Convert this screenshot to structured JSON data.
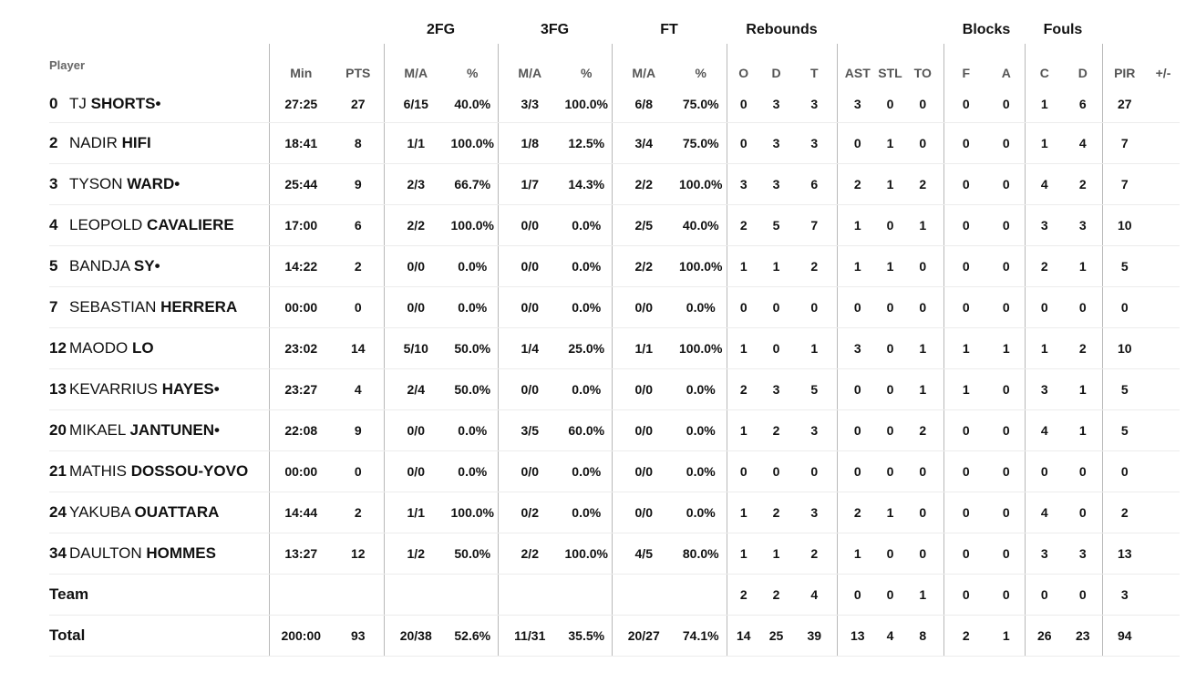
{
  "groups": {
    "fg2": "2FG",
    "fg3": "3FG",
    "ft": "FT",
    "rebounds": "Rebounds",
    "blocks": "Blocks",
    "fouls": "Fouls"
  },
  "columns": {
    "player": "Player",
    "min": "Min",
    "pts": "PTS",
    "fg2_ma": "M/A",
    "fg2_pct": "%",
    "fg3_ma": "M/A",
    "fg3_pct": "%",
    "ft_ma": "M/A",
    "ft_pct": "%",
    "reb_o": "O",
    "reb_d": "D",
    "reb_t": "T",
    "ast": "AST",
    "stl": "STL",
    "to": "TO",
    "blk_f": "F",
    "blk_a": "A",
    "foul_c": "C",
    "foul_d": "D",
    "pir": "PIR",
    "pm": "+/-"
  },
  "players": [
    {
      "num": "0",
      "first": "TJ",
      "last": "SHORTS",
      "starter": true,
      "min": "27:25",
      "pts": "27",
      "fg2_ma": "6/15",
      "fg2_pct": "40.0%",
      "fg3_ma": "3/3",
      "fg3_pct": "100.0%",
      "ft_ma": "6/8",
      "ft_pct": "75.0%",
      "reb_o": "0",
      "reb_d": "3",
      "reb_t": "3",
      "ast": "3",
      "stl": "0",
      "to": "0",
      "blk_f": "0",
      "blk_a": "0",
      "foul_c": "1",
      "foul_d": "6",
      "pir": "27",
      "pm": ""
    },
    {
      "num": "2",
      "first": "NADIR",
      "last": "HIFI",
      "starter": false,
      "min": "18:41",
      "pts": "8",
      "fg2_ma": "1/1",
      "fg2_pct": "100.0%",
      "fg3_ma": "1/8",
      "fg3_pct": "12.5%",
      "ft_ma": "3/4",
      "ft_pct": "75.0%",
      "reb_o": "0",
      "reb_d": "3",
      "reb_t": "3",
      "ast": "0",
      "stl": "1",
      "to": "0",
      "blk_f": "0",
      "blk_a": "0",
      "foul_c": "1",
      "foul_d": "4",
      "pir": "7",
      "pm": ""
    },
    {
      "num": "3",
      "first": "TYSON",
      "last": "WARD",
      "starter": true,
      "min": "25:44",
      "pts": "9",
      "fg2_ma": "2/3",
      "fg2_pct": "66.7%",
      "fg3_ma": "1/7",
      "fg3_pct": "14.3%",
      "ft_ma": "2/2",
      "ft_pct": "100.0%",
      "reb_o": "3",
      "reb_d": "3",
      "reb_t": "6",
      "ast": "2",
      "stl": "1",
      "to": "2",
      "blk_f": "0",
      "blk_a": "0",
      "foul_c": "4",
      "foul_d": "2",
      "pir": "7",
      "pm": ""
    },
    {
      "num": "4",
      "first": "LEOPOLD",
      "last": "CAVALIERE",
      "starter": false,
      "min": "17:00",
      "pts": "6",
      "fg2_ma": "2/2",
      "fg2_pct": "100.0%",
      "fg3_ma": "0/0",
      "fg3_pct": "0.0%",
      "ft_ma": "2/5",
      "ft_pct": "40.0%",
      "reb_o": "2",
      "reb_d": "5",
      "reb_t": "7",
      "ast": "1",
      "stl": "0",
      "to": "1",
      "blk_f": "0",
      "blk_a": "0",
      "foul_c": "3",
      "foul_d": "3",
      "pir": "10",
      "pm": ""
    },
    {
      "num": "5",
      "first": "BANDJA",
      "last": "SY",
      "starter": true,
      "min": "14:22",
      "pts": "2",
      "fg2_ma": "0/0",
      "fg2_pct": "0.0%",
      "fg3_ma": "0/0",
      "fg3_pct": "0.0%",
      "ft_ma": "2/2",
      "ft_pct": "100.0%",
      "reb_o": "1",
      "reb_d": "1",
      "reb_t": "2",
      "ast": "1",
      "stl": "1",
      "to": "0",
      "blk_f": "0",
      "blk_a": "0",
      "foul_c": "2",
      "foul_d": "1",
      "pir": "5",
      "pm": ""
    },
    {
      "num": "7",
      "first": "SEBASTIAN",
      "last": "HERRERA",
      "starter": false,
      "min": "00:00",
      "pts": "0",
      "fg2_ma": "0/0",
      "fg2_pct": "0.0%",
      "fg3_ma": "0/0",
      "fg3_pct": "0.0%",
      "ft_ma": "0/0",
      "ft_pct": "0.0%",
      "reb_o": "0",
      "reb_d": "0",
      "reb_t": "0",
      "ast": "0",
      "stl": "0",
      "to": "0",
      "blk_f": "0",
      "blk_a": "0",
      "foul_c": "0",
      "foul_d": "0",
      "pir": "0",
      "pm": ""
    },
    {
      "num": "12",
      "first": "MAODO",
      "last": "LO",
      "starter": false,
      "min": "23:02",
      "pts": "14",
      "fg2_ma": "5/10",
      "fg2_pct": "50.0%",
      "fg3_ma": "1/4",
      "fg3_pct": "25.0%",
      "ft_ma": "1/1",
      "ft_pct": "100.0%",
      "reb_o": "1",
      "reb_d": "0",
      "reb_t": "1",
      "ast": "3",
      "stl": "0",
      "to": "1",
      "blk_f": "1",
      "blk_a": "1",
      "foul_c": "1",
      "foul_d": "2",
      "pir": "10",
      "pm": ""
    },
    {
      "num": "13",
      "first": "KEVARRIUS",
      "last": "HAYES",
      "starter": true,
      "min": "23:27",
      "pts": "4",
      "fg2_ma": "2/4",
      "fg2_pct": "50.0%",
      "fg3_ma": "0/0",
      "fg3_pct": "0.0%",
      "ft_ma": "0/0",
      "ft_pct": "0.0%",
      "reb_o": "2",
      "reb_d": "3",
      "reb_t": "5",
      "ast": "0",
      "stl": "0",
      "to": "1",
      "blk_f": "1",
      "blk_a": "0",
      "foul_c": "3",
      "foul_d": "1",
      "pir": "5",
      "pm": ""
    },
    {
      "num": "20",
      "first": "MIKAEL",
      "last": "JANTUNEN",
      "starter": true,
      "min": "22:08",
      "pts": "9",
      "fg2_ma": "0/0",
      "fg2_pct": "0.0%",
      "fg3_ma": "3/5",
      "fg3_pct": "60.0%",
      "ft_ma": "0/0",
      "ft_pct": "0.0%",
      "reb_o": "1",
      "reb_d": "2",
      "reb_t": "3",
      "ast": "0",
      "stl": "0",
      "to": "2",
      "blk_f": "0",
      "blk_a": "0",
      "foul_c": "4",
      "foul_d": "1",
      "pir": "5",
      "pm": ""
    },
    {
      "num": "21",
      "first": "MATHIS",
      "last": "DOSSOU-YOVO",
      "starter": false,
      "min": "00:00",
      "pts": "0",
      "fg2_ma": "0/0",
      "fg2_pct": "0.0%",
      "fg3_ma": "0/0",
      "fg3_pct": "0.0%",
      "ft_ma": "0/0",
      "ft_pct": "0.0%",
      "reb_o": "0",
      "reb_d": "0",
      "reb_t": "0",
      "ast": "0",
      "stl": "0",
      "to": "0",
      "blk_f": "0",
      "blk_a": "0",
      "foul_c": "0",
      "foul_d": "0",
      "pir": "0",
      "pm": ""
    },
    {
      "num": "24",
      "first": "YAKUBA",
      "last": "OUATTARA",
      "starter": false,
      "min": "14:44",
      "pts": "2",
      "fg2_ma": "1/1",
      "fg2_pct": "100.0%",
      "fg3_ma": "0/2",
      "fg3_pct": "0.0%",
      "ft_ma": "0/0",
      "ft_pct": "0.0%",
      "reb_o": "1",
      "reb_d": "2",
      "reb_t": "3",
      "ast": "2",
      "stl": "1",
      "to": "0",
      "blk_f": "0",
      "blk_a": "0",
      "foul_c": "4",
      "foul_d": "0",
      "pir": "2",
      "pm": ""
    },
    {
      "num": "34",
      "first": "DAULTON",
      "last": "HOMMES",
      "starter": false,
      "min": "13:27",
      "pts": "12",
      "fg2_ma": "1/2",
      "fg2_pct": "50.0%",
      "fg3_ma": "2/2",
      "fg3_pct": "100.0%",
      "ft_ma": "4/5",
      "ft_pct": "80.0%",
      "reb_o": "1",
      "reb_d": "1",
      "reb_t": "2",
      "ast": "1",
      "stl": "0",
      "to": "0",
      "blk_f": "0",
      "blk_a": "0",
      "foul_c": "3",
      "foul_d": "3",
      "pir": "13",
      "pm": ""
    }
  ],
  "starter_mark": "•",
  "team_row": {
    "label": "Team",
    "min": "",
    "pts": "",
    "fg2_ma": "",
    "fg2_pct": "",
    "fg3_ma": "",
    "fg3_pct": "",
    "ft_ma": "",
    "ft_pct": "",
    "reb_o": "2",
    "reb_d": "2",
    "reb_t": "4",
    "ast": "0",
    "stl": "0",
    "to": "1",
    "blk_f": "0",
    "blk_a": "0",
    "foul_c": "0",
    "foul_d": "0",
    "pir": "3",
    "pm": ""
  },
  "total_row": {
    "label": "Total",
    "min": "200:00",
    "pts": "93",
    "fg2_ma": "20/38",
    "fg2_pct": "52.6%",
    "fg3_ma": "11/31",
    "fg3_pct": "35.5%",
    "ft_ma": "20/27",
    "ft_pct": "74.1%",
    "reb_o": "14",
    "reb_d": "25",
    "reb_t": "39",
    "ast": "13",
    "stl": "4",
    "to": "8",
    "blk_f": "2",
    "blk_a": "1",
    "foul_c": "26",
    "foul_d": "23",
    "pir": "94",
    "pm": ""
  }
}
